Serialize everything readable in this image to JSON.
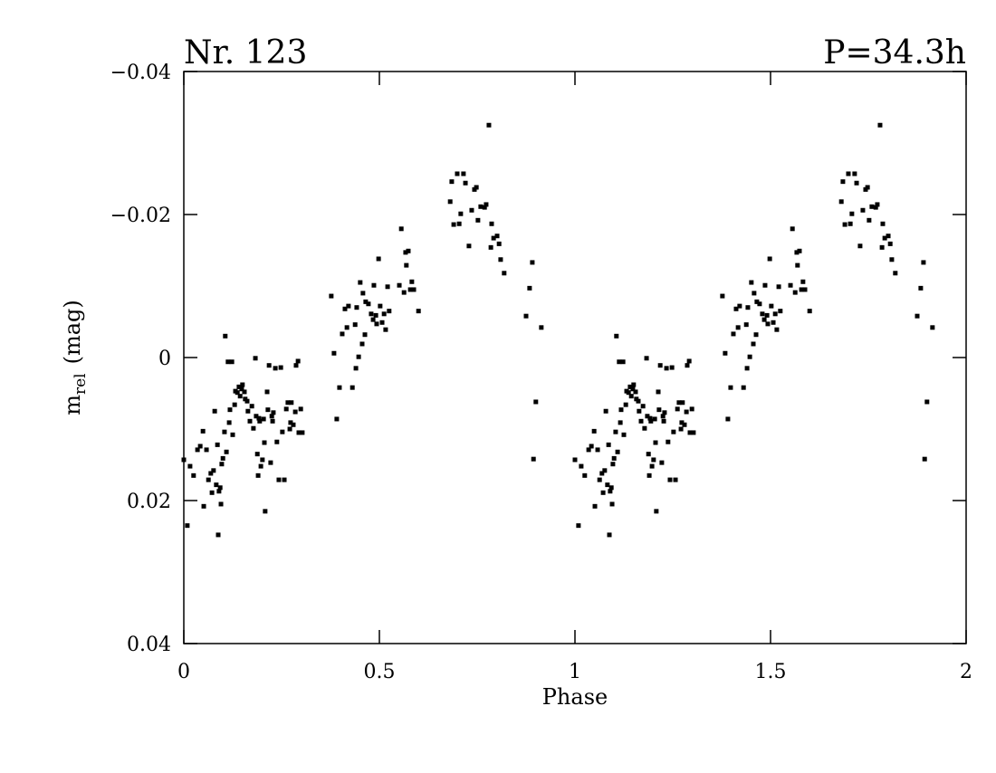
{
  "chart_data": {
    "type": "scatter",
    "title_left": "Nr. 123",
    "title_right": "P=34.3h",
    "xlabel": "Phase",
    "ylabel": {
      "main": "m",
      "sub": "rel",
      "unit": "(mag)"
    },
    "xlim": [
      0,
      2
    ],
    "xticks": [
      0,
      0.5,
      1,
      1.5,
      2
    ],
    "ylim": [
      0.04,
      -0.04
    ],
    "yticks": [
      {
        "value": -0.04,
        "label": "−0.04"
      },
      {
        "value": -0.02,
        "label": "−0.02"
      },
      0,
      0.02,
      0.04
    ],
    "color": "#000000",
    "x": [
      0.0,
      0.009,
      0.016,
      0.025,
      0.035,
      0.042,
      0.049,
      0.051,
      0.058,
      0.063,
      0.069,
      0.072,
      0.076,
      0.079,
      0.083,
      0.086,
      0.088,
      0.09,
      0.093,
      0.095,
      0.097,
      0.1,
      0.104,
      0.106,
      0.109,
      0.113,
      0.116,
      0.118,
      0.123,
      0.125,
      0.13,
      0.132,
      0.137,
      0.141,
      0.144,
      0.148,
      0.15,
      0.155,
      0.157,
      0.162,
      0.164,
      0.169,
      0.174,
      0.178,
      0.183,
      0.185,
      0.188,
      0.19,
      0.192,
      0.194,
      0.197,
      0.201,
      0.204,
      0.206,
      0.208,
      0.213,
      0.215,
      0.218,
      0.222,
      0.225,
      0.227,
      0.229,
      0.234,
      0.238,
      0.243,
      0.248,
      0.252,
      0.257,
      0.262,
      0.266,
      0.271,
      0.273,
      0.275,
      0.28,
      0.285,
      0.287,
      0.292,
      0.294,
      0.299,
      0.303,
      0.377,
      0.384,
      0.391,
      0.398,
      0.405,
      0.412,
      0.417,
      0.421,
      0.431,
      0.438,
      0.44,
      0.442,
      0.447,
      0.451,
      0.456,
      0.458,
      0.463,
      0.465,
      0.472,
      0.479,
      0.484,
      0.486,
      0.491,
      0.493,
      0.498,
      0.502,
      0.507,
      0.512,
      0.516,
      0.521,
      0.525,
      0.551,
      0.556,
      0.563,
      0.567,
      0.569,
      0.574,
      0.579,
      0.583,
      0.588,
      0.6,
      0.681,
      0.685,
      0.69,
      0.699,
      0.704,
      0.708,
      0.715,
      0.72,
      0.729,
      0.736,
      0.743,
      0.748,
      0.752,
      0.759,
      0.769,
      0.773,
      0.78,
      0.785,
      0.787,
      0.792,
      0.801,
      0.806,
      0.81,
      0.819,
      0.875,
      0.884,
      0.891,
      0.894,
      0.9,
      0.914,
      1.0,
      1.009,
      1.016,
      1.025,
      1.035,
      1.042,
      1.049,
      1.051,
      1.058,
      1.063,
      1.069,
      1.072,
      1.076,
      1.079,
      1.083,
      1.086,
      1.088,
      1.09,
      1.093,
      1.095,
      1.097,
      1.1,
      1.104,
      1.106,
      1.109,
      1.113,
      1.116,
      1.118,
      1.123,
      1.125,
      1.13,
      1.132,
      1.137,
      1.141,
      1.144,
      1.148,
      1.15,
      1.155,
      1.157,
      1.162,
      1.164,
      1.169,
      1.174,
      1.178,
      1.183,
      1.185,
      1.188,
      1.19,
      1.192,
      1.194,
      1.197,
      1.201,
      1.204,
      1.206,
      1.208,
      1.213,
      1.215,
      1.218,
      1.222,
      1.225,
      1.227,
      1.229,
      1.234,
      1.238,
      1.243,
      1.248,
      1.252,
      1.257,
      1.262,
      1.266,
      1.271,
      1.273,
      1.275,
      1.28,
      1.285,
      1.287,
      1.292,
      1.294,
      1.299,
      1.303,
      1.377,
      1.384,
      1.391,
      1.398,
      1.405,
      1.412,
      1.417,
      1.421,
      1.431,
      1.438,
      1.44,
      1.442,
      1.447,
      1.451,
      1.456,
      1.458,
      1.463,
      1.465,
      1.472,
      1.479,
      1.484,
      1.486,
      1.491,
      1.493,
      1.498,
      1.502,
      1.507,
      1.512,
      1.516,
      1.521,
      1.525,
      1.551,
      1.556,
      1.563,
      1.567,
      1.569,
      1.574,
      1.579,
      1.583,
      1.588,
      1.6,
      1.681,
      1.685,
      1.69,
      1.699,
      1.704,
      1.708,
      1.715,
      1.72,
      1.729,
      1.736,
      1.743,
      1.748,
      1.752,
      1.759,
      1.769,
      1.773,
      1.78,
      1.785,
      1.787,
      1.792,
      1.801,
      1.806,
      1.81,
      1.819,
      1.875,
      1.884,
      1.891,
      1.894,
      1.9,
      1.914
    ],
    "values": [
      0.0143,
      0.0235,
      0.0152,
      0.0165,
      0.0129,
      0.0124,
      0.0103,
      0.0208,
      0.0129,
      0.0171,
      0.0162,
      0.0189,
      0.0158,
      0.0075,
      0.0178,
      0.0122,
      0.0248,
      0.0187,
      0.0182,
      0.0205,
      0.0149,
      0.0141,
      0.0104,
      -0.003,
      0.0132,
      0.0006,
      0.0091,
      0.0073,
      0.0006,
      0.0108,
      0.0066,
      0.0047,
      0.0049,
      0.0041,
      0.0054,
      0.0044,
      0.0038,
      0.0048,
      0.0058,
      0.0061,
      0.0075,
      0.0089,
      0.0068,
      0.0099,
      0.0001,
      0.0082,
      0.0135,
      0.0165,
      0.0085,
      0.0089,
      0.0152,
      0.0143,
      0.0086,
      0.0119,
      0.0215,
      0.0048,
      0.0073,
      0.0011,
      0.0147,
      0.0082,
      0.0089,
      0.0077,
      0.0015,
      0.0118,
      0.0171,
      0.0014,
      0.0104,
      0.0171,
      0.0072,
      0.0063,
      0.01,
      0.0091,
      0.0063,
      0.0094,
      0.0076,
      0.0011,
      0.0005,
      0.0105,
      0.0072,
      0.0105,
      -0.0086,
      -0.0006,
      0.0086,
      0.0042,
      -0.0033,
      -0.0068,
      -0.0042,
      -0.0072,
      0.0042,
      -0.0046,
      0.0015,
      -0.007,
      -0.0001,
      -0.0105,
      -0.0019,
      -0.009,
      -0.0032,
      -0.0078,
      -0.0075,
      -0.0061,
      -0.0053,
      -0.0101,
      -0.0059,
      -0.0047,
      -0.0138,
      -0.0072,
      -0.0049,
      -0.0061,
      -0.0039,
      -0.0099,
      -0.0065,
      -0.0101,
      -0.018,
      -0.0091,
      -0.0147,
      -0.0129,
      -0.0149,
      -0.0095,
      -0.0106,
      -0.0095,
      -0.0065,
      -0.0218,
      -0.0246,
      -0.0186,
      -0.0257,
      -0.0187,
      -0.0201,
      -0.0257,
      -0.0244,
      -0.0156,
      -0.0206,
      -0.0235,
      -0.0238,
      -0.0192,
      -0.0211,
      -0.021,
      -0.0214,
      -0.0325,
      -0.0154,
      -0.0187,
      -0.0167,
      -0.017,
      -0.0159,
      -0.0137,
      -0.0118,
      -0.0058,
      -0.0097,
      -0.0133,
      0.0142,
      0.0062,
      -0.0042,
      0.0143,
      0.0235,
      0.0152,
      0.0165,
      0.0129,
      0.0124,
      0.0103,
      0.0208,
      0.0129,
      0.0171,
      0.0162,
      0.0189,
      0.0158,
      0.0075,
      0.0178,
      0.0122,
      0.0248,
      0.0187,
      0.0182,
      0.0205,
      0.0149,
      0.0141,
      0.0104,
      -0.003,
      0.0132,
      0.0006,
      0.0091,
      0.0073,
      0.0006,
      0.0108,
      0.0066,
      0.0047,
      0.0049,
      0.0041,
      0.0054,
      0.0044,
      0.0038,
      0.0048,
      0.0058,
      0.0061,
      0.0075,
      0.0089,
      0.0068,
      0.0099,
      0.0001,
      0.0082,
      0.0135,
      0.0165,
      0.0085,
      0.0089,
      0.0152,
      0.0143,
      0.0086,
      0.0119,
      0.0215,
      0.0048,
      0.0073,
      0.0011,
      0.0147,
      0.0082,
      0.0089,
      0.0077,
      0.0015,
      0.0118,
      0.0171,
      0.0014,
      0.0104,
      0.0171,
      0.0072,
      0.0063,
      0.01,
      0.0091,
      0.0063,
      0.0094,
      0.0076,
      0.0011,
      0.0005,
      0.0105,
      0.0072,
      0.0105,
      -0.0086,
      -0.0006,
      0.0086,
      0.0042,
      -0.0033,
      -0.0068,
      -0.0042,
      -0.0072,
      0.0042,
      -0.0046,
      0.0015,
      -0.007,
      -0.0001,
      -0.0105,
      -0.0019,
      -0.009,
      -0.0032,
      -0.0078,
      -0.0075,
      -0.0061,
      -0.0053,
      -0.0101,
      -0.0059,
      -0.0047,
      -0.0138,
      -0.0072,
      -0.0049,
      -0.0061,
      -0.0039,
      -0.0099,
      -0.0065,
      -0.0101,
      -0.018,
      -0.0091,
      -0.0147,
      -0.0129,
      -0.0149,
      -0.0095,
      -0.0106,
      -0.0095,
      -0.0065,
      -0.0218,
      -0.0246,
      -0.0186,
      -0.0257,
      -0.0187,
      -0.0201,
      -0.0257,
      -0.0244,
      -0.0156,
      -0.0206,
      -0.0235,
      -0.0238,
      -0.0192,
      -0.0211,
      -0.021,
      -0.0214,
      -0.0325,
      -0.0154,
      -0.0187,
      -0.0167,
      -0.017,
      -0.0159,
      -0.0137,
      -0.0118,
      -0.0058,
      -0.0097,
      -0.0133,
      0.0142,
      0.0062,
      -0.0042
    ]
  }
}
